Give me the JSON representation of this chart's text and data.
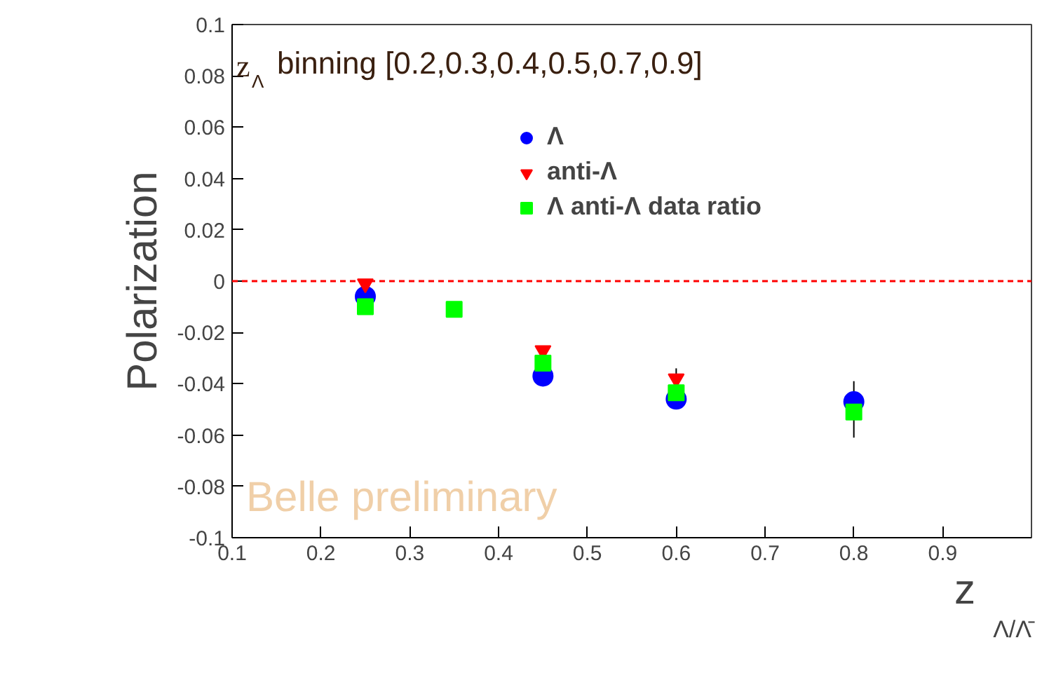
{
  "chart_data": {
    "type": "scatter",
    "xlabel": "z$_{Λ/Λ̄}$",
    "ylabel": "Polarization",
    "annotations": [
      "z$_{Λ}$ binning [0.2,0.3,0.4,0.5,0.7,0.9]",
      "Belle preliminary"
    ],
    "x": [
      0.25,
      0.35,
      0.45,
      0.6,
      0.8
    ],
    "series": [
      {
        "name": "Λ",
        "color": "#0000ff",
        "marker": "circle",
        "values": [
          -0.006,
          null,
          -0.037,
          -0.046,
          -0.047
        ],
        "errors": [
          null,
          null,
          null,
          null,
          [
            -0.061,
            -0.039
          ]
        ]
      },
      {
        "name": "anti-Λ",
        "color": "#ff0000",
        "marker": "triangle",
        "values": [
          -0.001,
          null,
          -0.027,
          -0.038,
          null
        ],
        "errors": [
          null,
          null,
          null,
          0.004,
          null
        ]
      },
      {
        "name": "Λ anti-Λ data ratio",
        "color": "#00ff00",
        "marker": "square",
        "values": [
          -0.01,
          -0.011,
          -0.032,
          -0.0435,
          -0.051
        ]
      }
    ],
    "xlim": [
      0.1,
      1.0
    ],
    "xticks": [
      0.1,
      0.2,
      0.3,
      0.4,
      0.5,
      0.6,
      0.7,
      0.8,
      0.9
    ],
    "ylim": [
      -0.1,
      0.1
    ],
    "yticks": [
      -0.1,
      -0.08,
      -0.06,
      -0.04,
      -0.02,
      0,
      0.02,
      0.04,
      0.06,
      0.08,
      0.1
    ],
    "ref_lines": [
      {
        "axis": "y",
        "value": 0,
        "color": "#ff0000",
        "line_style": "dashed"
      }
    ],
    "legend": "top",
    "grid": false
  }
}
